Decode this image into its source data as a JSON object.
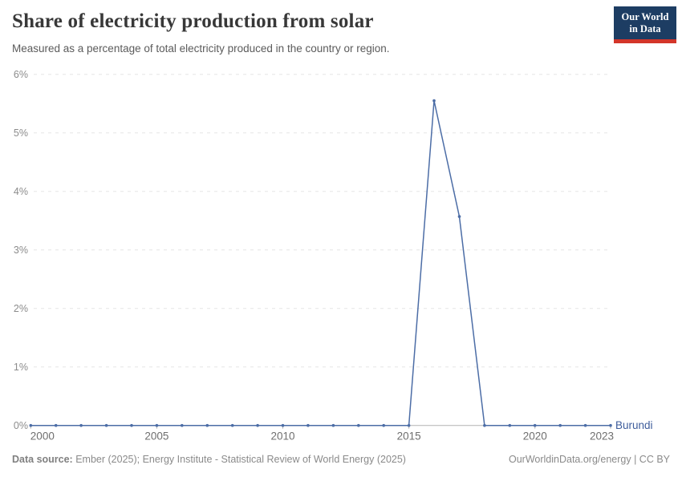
{
  "header": {
    "title": "Share of electricity production from solar",
    "subtitle": "Measured as a percentage of total electricity produced in the country or region."
  },
  "logo": {
    "line1": "Our World",
    "line2": "in Data",
    "bg_color": "#1d3d63",
    "bar_color": "#d3352a",
    "text_color": "#ffffff"
  },
  "chart_data": {
    "type": "line",
    "title": "Share of electricity production from solar",
    "unit": "%",
    "entity": "Burundi",
    "x": [
      2000,
      2001,
      2002,
      2003,
      2004,
      2005,
      2006,
      2007,
      2008,
      2009,
      2010,
      2011,
      2012,
      2013,
      2014,
      2015,
      2016,
      2017,
      2018,
      2019,
      2020,
      2021,
      2022,
      2023
    ],
    "series": [
      {
        "name": "Burundi",
        "values": [
          0,
          0,
          0,
          0,
          0,
          0,
          0,
          0,
          0,
          0,
          0,
          0,
          0,
          0,
          0,
          0,
          5.55,
          3.57,
          0,
          0,
          0,
          0,
          0,
          0
        ]
      }
    ],
    "xlim": [
      2000,
      2023
    ],
    "ylim": [
      0,
      6
    ],
    "yticks": [
      0,
      1,
      2,
      3,
      4,
      5,
      6
    ],
    "ytick_labels": [
      "0%",
      "1%",
      "2%",
      "3%",
      "4%",
      "5%",
      "6%"
    ],
    "xticks": [
      2000,
      2005,
      2010,
      2015,
      2020,
      2023
    ],
    "xtick_labels": [
      "2000",
      "2005",
      "2010",
      "2015",
      "2020",
      "2023"
    ],
    "grid": "horizontal-dashed",
    "legend_position": "end-of-line",
    "line_color": "#4C6DA6",
    "entity_label_color": "#3D5C9B"
  },
  "footer": {
    "source_label": "Data source:",
    "source_text": " Ember (2025); Energy Institute - Statistical Review of World Energy (2025)",
    "right_text": "OurWorldinData.org/energy | CC BY"
  }
}
